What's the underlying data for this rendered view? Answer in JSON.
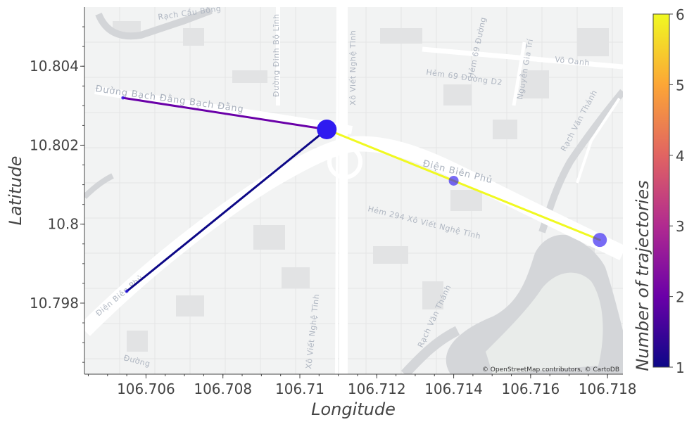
{
  "chart_data": {
    "type": "scatter",
    "subtype": "map_trajectories",
    "xlabel": "Longitude",
    "ylabel": "Latitude",
    "xlim": [
      106.7044,
      106.7184
    ],
    "ylim": [
      10.7962,
      10.8055
    ],
    "x_ticks": [
      "106.706",
      "106.708",
      "106.71",
      "106.712",
      "106.714",
      "106.716",
      "106.718"
    ],
    "y_ticks": [
      "10.798",
      "10.8",
      "10.802",
      "10.804"
    ],
    "colorbar": {
      "title": "Number of trajectories",
      "min": 1,
      "max": 6,
      "ticks": [
        "1",
        "2",
        "3",
        "4",
        "5",
        "6"
      ]
    },
    "segments": [
      {
        "from": [
          106.7054,
          10.8032
        ],
        "to": [
          106.7107,
          10.8024
        ],
        "count": 2
      },
      {
        "from": [
          106.7055,
          10.7983
        ],
        "to": [
          106.7107,
          10.8024
        ],
        "count": 1
      },
      {
        "from": [
          106.7107,
          10.8024
        ],
        "to": [
          106.714,
          10.8011
        ],
        "count": 6
      },
      {
        "from": [
          106.714,
          10.8011
        ],
        "to": [
          106.7178,
          10.7996
        ],
        "count": 6
      }
    ],
    "nodes": [
      {
        "lon": 106.7107,
        "lat": 10.8024,
        "size": 3
      },
      {
        "lon": 106.714,
        "lat": 10.8011,
        "size": 1
      },
      {
        "lon": 106.7178,
        "lat": 10.7996,
        "size": 2
      },
      {
        "lon": 106.7054,
        "lat": 10.8032,
        "size": 0
      },
      {
        "lon": 106.7055,
        "lat": 10.7983,
        "size": 0
      }
    ],
    "colors": {
      "node": "#2f1bf0",
      "colorscale": [
        "#0d0887",
        "#7201a8",
        "#bd3786",
        "#ed7953",
        "#fdca26",
        "#f0f921"
      ]
    }
  },
  "map": {
    "attribution": "© OpenStreetMap contributors, © CartoDB",
    "streets": [
      {
        "text": "Rạch Cầu Bông"
      },
      {
        "text": "Đường Bạch Đằng  Bạch Đằng"
      },
      {
        "text": "Đường Đinh Bộ Lĩnh"
      },
      {
        "text": "Xô Viết Nghệ Tĩnh"
      },
      {
        "text": "Xô Viết Nghệ Tĩnh"
      },
      {
        "text": "Hẻm 69 Đường D2"
      },
      {
        "text": "Hẻm 69 Đường"
      },
      {
        "text": "Nguyễn Gia Trí"
      },
      {
        "text": "Võ Oanh"
      },
      {
        "text": "Rạch Văn Thánh"
      },
      {
        "text": "Điện Biên Phủ"
      },
      {
        "text": "Hẻm 294 Xô Viết Nghệ Tĩnh"
      },
      {
        "text": "Rạch Văn Thánh"
      },
      {
        "text": "Điện Biên Phủ"
      },
      {
        "text": "Đường"
      }
    ]
  }
}
